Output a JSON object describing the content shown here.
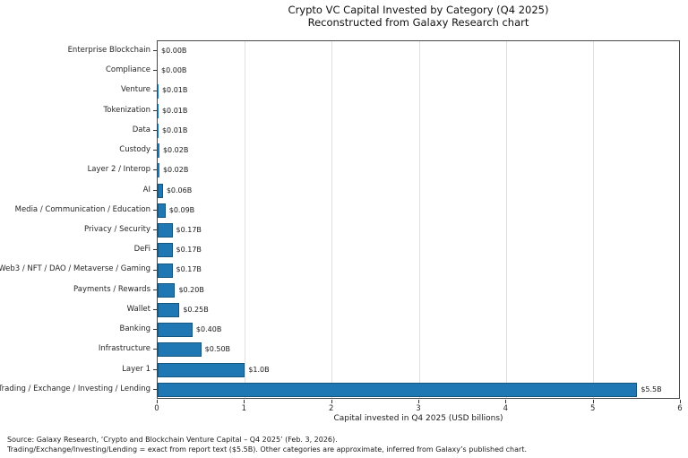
{
  "title": {
    "line1": "Crypto VC Capital Invested by Category (Q4 2025)",
    "line2": "Reconstructed from Galaxy Research chart"
  },
  "chart_data": {
    "type": "bar",
    "orientation": "horizontal",
    "title": "Crypto VC Capital Invested by Category (Q4 2025)\nReconstructed from Galaxy Research chart",
    "categories": [
      "Enterprise Blockchain",
      "Compliance",
      "Venture",
      "Tokenization",
      "Data",
      "Custody",
      "Layer 2 / Interop",
      "AI",
      "Media / Communication / Education",
      "Privacy / Security",
      "DeFi",
      "Web3 / NFT / DAO / Metaverse / Gaming",
      "Payments / Rewards",
      "Wallet",
      "Banking",
      "Infrastructure",
      "Layer 1",
      "Trading / Exchange / Investing / Lending"
    ],
    "values": [
      0.0,
      0.0,
      0.01,
      0.01,
      0.01,
      0.02,
      0.02,
      0.06,
      0.09,
      0.17,
      0.17,
      0.17,
      0.2,
      0.25,
      0.4,
      0.5,
      1.0,
      5.5
    ],
    "value_labels": [
      "$0.00B",
      "$0.00B",
      "$0.01B",
      "$0.01B",
      "$0.01B",
      "$0.02B",
      "$0.02B",
      "$0.06B",
      "$0.09B",
      "$0.17B",
      "$0.17B",
      "$0.17B",
      "$0.20B",
      "$0.25B",
      "$0.40B",
      "$0.50B",
      "$1.0B",
      "$5.5B"
    ],
    "xlabel": "Capital invested in Q4 2025 (USD billions)",
    "ylabel": "",
    "xlim": [
      0,
      6
    ],
    "xticks": [
      0,
      1,
      2,
      3,
      4,
      5,
      6
    ],
    "grid": true,
    "legend": "none",
    "colors": {
      "bar_fill": "#1f77b4",
      "bar_edge": "#15567f",
      "gridline": "#e0e0e0",
      "spine": "#4a4a4a"
    }
  },
  "footer": {
    "line1": "Source: Galaxy Research, ‘Crypto and Blockchain Venture Capital – Q4 2025’ (Feb. 3, 2026).",
    "line2": "Trading/Exchange/Investing/Lending = exact from report text ($5.5B). Other categories are approximate, inferred from Galaxy’s published chart."
  }
}
